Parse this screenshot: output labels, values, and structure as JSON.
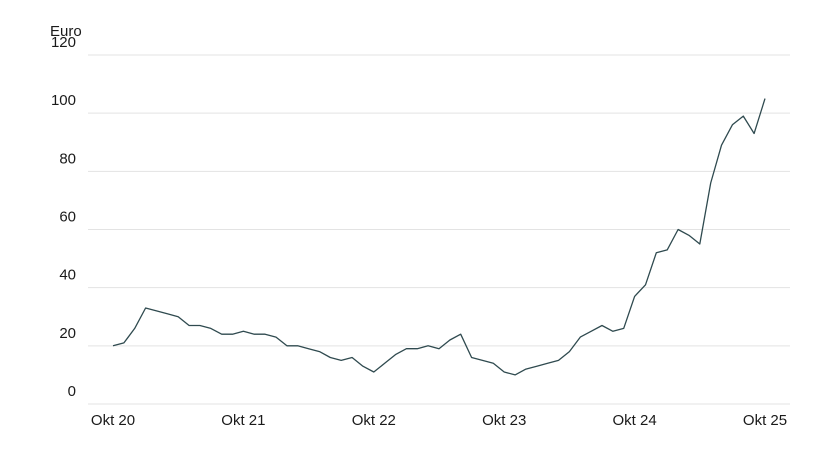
{
  "chart_data": {
    "type": "line",
    "y_label": "Euro",
    "x": [
      "2020-10",
      "2020-11",
      "2020-12",
      "2021-01",
      "2021-02",
      "2021-03",
      "2021-04",
      "2021-05",
      "2021-06",
      "2021-07",
      "2021-08",
      "2021-09",
      "2021-10",
      "2021-11",
      "2021-12",
      "2022-01",
      "2022-02",
      "2022-03",
      "2022-04",
      "2022-05",
      "2022-06",
      "2022-07",
      "2022-08",
      "2022-09",
      "2022-10",
      "2022-11",
      "2022-12",
      "2023-01",
      "2023-02",
      "2023-03",
      "2023-04",
      "2023-05",
      "2023-06",
      "2023-07",
      "2023-08",
      "2023-09",
      "2023-10",
      "2023-11",
      "2023-12",
      "2024-01",
      "2024-02",
      "2024-03",
      "2024-04",
      "2024-05",
      "2024-06",
      "2024-07",
      "2024-08",
      "2024-09",
      "2024-10",
      "2024-11",
      "2024-12",
      "2025-01",
      "2025-02",
      "2025-03",
      "2025-04",
      "2025-05",
      "2025-06",
      "2025-07",
      "2025-08",
      "2025-09",
      "2025-10"
    ],
    "series": [
      {
        "color": "#2f4a4f",
        "values": [
          20,
          21,
          26,
          33,
          32,
          31,
          30,
          27,
          27,
          26,
          24,
          24,
          25,
          24,
          24,
          23,
          20,
          20,
          19,
          18,
          16,
          15,
          16,
          13,
          11,
          14,
          17,
          19,
          19,
          20,
          19,
          22,
          24,
          16,
          15,
          14,
          11,
          10,
          12,
          13,
          14,
          15,
          18,
          23,
          25,
          27,
          25,
          26,
          37,
          41,
          52,
          53,
          60,
          58,
          55,
          76,
          89,
          96,
          99,
          93,
          105
        ]
      }
    ],
    "xticks": [
      {
        "value": "2020-10",
        "label": "Okt 20"
      },
      {
        "value": "2021-10",
        "label": "Okt 21"
      },
      {
        "value": "2022-10",
        "label": "Okt 22"
      },
      {
        "value": "2023-10",
        "label": "Okt 23"
      },
      {
        "value": "2024-10",
        "label": "Okt 24"
      },
      {
        "value": "2025-10",
        "label": "Okt 25"
      }
    ],
    "ylim": [
      0,
      120
    ],
    "yticks": [
      0,
      20,
      40,
      60,
      80,
      100,
      120
    ],
    "grid": true
  }
}
